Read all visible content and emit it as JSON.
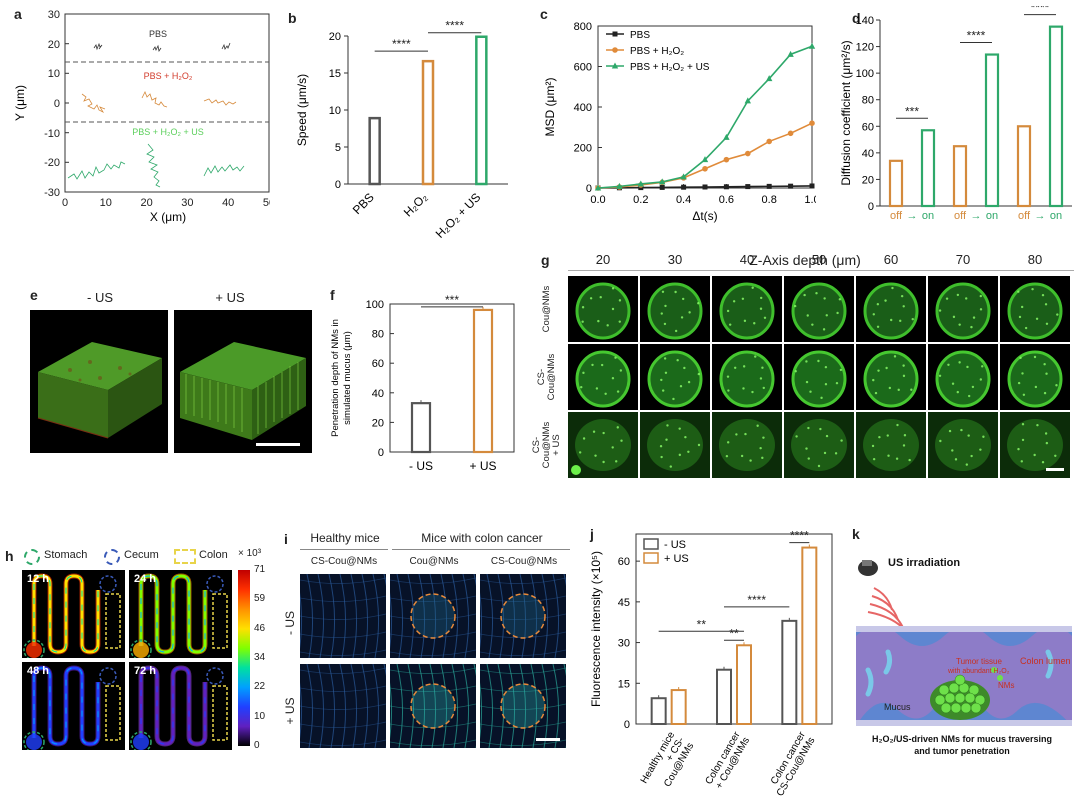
{
  "panels": {
    "a": {
      "label": "a",
      "xlabel": "X (μm)",
      "ylabel": "Y (μm)",
      "xticks": [
        "0",
        "10",
        "20",
        "30",
        "40",
        "50"
      ],
      "yticks": [
        "30",
        "20",
        "10",
        "0",
        "-10",
        "-20",
        "-30"
      ],
      "groups": [
        {
          "name": "PBS",
          "color": "#333333"
        },
        {
          "name": "PBS + H₂O₂",
          "color": "#d23c2c"
        },
        {
          "name": "PBS + H₂O₂ + US",
          "color": "#5ccf5c"
        }
      ],
      "trace_colors": {
        "pbs": "#333333",
        "h2o2": "#d68a3c",
        "us": "#2ea86a"
      }
    },
    "b": {
      "label": "b",
      "chart_data": {
        "type": "bar",
        "categories": [
          "PBS",
          "H₂O₂",
          "H₂O₂ + US"
        ],
        "values": [
          8.9,
          16.6,
          19.9
        ],
        "colors": [
          "#555555",
          "#d48a3c",
          "#2ea86a"
        ],
        "ylabel": "Speed (μm/s)",
        "ylim": [
          0,
          20
        ],
        "yticks": [
          0,
          5,
          10,
          15,
          20
        ],
        "significance": [
          "****",
          "****"
        ]
      }
    },
    "c": {
      "label": "c",
      "chart_data": {
        "type": "line",
        "xlabel": "Δt(s)",
        "ylabel": "MSD (μm²)",
        "xlim": [
          0,
          1.0
        ],
        "ylim": [
          0,
          800
        ],
        "xticks": [
          0.0,
          0.2,
          0.4,
          0.6,
          0.8,
          1.0
        ],
        "yticks": [
          0,
          200,
          400,
          600,
          800
        ],
        "x": [
          0,
          0.1,
          0.2,
          0.3,
          0.4,
          0.5,
          0.6,
          0.7,
          0.8,
          0.9,
          1.0
        ],
        "series": [
          {
            "name": "PBS",
            "color": "#222222",
            "marker": "square",
            "values": [
              0,
              1,
              2,
              3,
              4,
              5,
              6,
              7,
              8,
              9,
              10
            ]
          },
          {
            "name": "PBS + H₂O₂",
            "color": "#e08b3a",
            "marker": "circle",
            "values": [
              0,
              5,
              15,
              28,
              50,
              95,
              140,
              170,
              230,
              270,
              320
            ]
          },
          {
            "name": "PBS + H₂O₂ + US",
            "color": "#2ea86a",
            "marker": "triangle",
            "values": [
              0,
              8,
              20,
              30,
              55,
              140,
              250,
              430,
              540,
              660,
              700
            ]
          }
        ]
      }
    },
    "d": {
      "label": "d",
      "chart_data": {
        "type": "bar",
        "ylabel": "Diffusion coefficient (μm²/s)",
        "ylim": [
          0,
          140
        ],
        "yticks": [
          0,
          20,
          40,
          60,
          80,
          100,
          120,
          140
        ],
        "categories": [
          "off",
          "on",
          "off",
          "on",
          "off",
          "on"
        ],
        "values": [
          34,
          57,
          45,
          114,
          60,
          135
        ],
        "colors": [
          "#d48a3c",
          "#2ea86a",
          "#d48a3c",
          "#2ea86a",
          "#d48a3c",
          "#2ea86a"
        ],
        "significance": [
          "***",
          "****",
          "****"
        ]
      }
    },
    "e": {
      "label": "e",
      "titles": [
        "- US",
        "+ US"
      ]
    },
    "f": {
      "label": "f",
      "chart_data": {
        "type": "bar",
        "categories": [
          "- US",
          "+ US"
        ],
        "values": [
          33,
          96
        ],
        "colors": [
          "#555555",
          "#d48a3c"
        ],
        "ylabel": "Penetration depth of NMs in simulated mucus (μm)",
        "ylabel_lines": [
          "Penetration depth of NMs in",
          "simulated mucus (μm)"
        ],
        "ylim": [
          0,
          100
        ],
        "yticks": [
          0,
          20,
          40,
          60,
          80,
          100
        ],
        "significance": [
          "***"
        ]
      }
    },
    "g": {
      "label": "g",
      "title": "Z-Axis depth (μm)",
      "depths": [
        "20",
        "30",
        "40",
        "50",
        "60",
        "70",
        "80"
      ],
      "rows": [
        "Cou@NMs",
        "CS-Cou@NMs",
        "CS-Cou@NMs + US"
      ],
      "row_lines": [
        [
          "Cou@NMs"
        ],
        [
          "CS-",
          "Cou@NMs"
        ],
        [
          "CS-",
          "Cou@NMs",
          "+ US"
        ]
      ]
    },
    "h": {
      "label": "h",
      "legend": [
        "Stomach",
        "Cecum",
        "Colon"
      ],
      "legend_colors": [
        "#2ea86a",
        "#3a5ab8",
        "#e8d44a"
      ],
      "times": [
        "12 h",
        "24 h",
        "48 h",
        "72 h"
      ],
      "colorbar_unit": "× 10³",
      "colorbar_ticks": [
        "71",
        "59",
        "46",
        "34",
        "22",
        "10",
        "0"
      ]
    },
    "i": {
      "label": "i",
      "group_headers": [
        "Healthy mice",
        "Mice with colon cancer"
      ],
      "col_headers": [
        "CS-Cou@NMs",
        "Cou@NMs",
        "CS-Cou@NMs"
      ],
      "row_labels": [
        "- US",
        "+ US"
      ]
    },
    "j": {
      "label": "j",
      "chart_data": {
        "type": "bar",
        "ylabel": "Fluorescence intensity (×10⁵)",
        "ylim": [
          0,
          70
        ],
        "yticks": [
          0,
          15,
          30,
          45,
          60
        ],
        "categories": [
          "Healthy mice + CS-Cou@NMs",
          "Colon cancer + Cou@NMs",
          "Colon cancer + CS-Cou@NMs"
        ],
        "category_lines": [
          [
            "Healthy mice",
            "+ CS-",
            "Cou@NMs"
          ],
          [
            "Colon cancer",
            "+ Cou@NMs"
          ],
          [
            "Colon cancer",
            "+ CS-Cou@NMs"
          ]
        ],
        "series": [
          {
            "name": "- US",
            "color": "#555555",
            "values": [
              9.5,
              20,
              38
            ]
          },
          {
            "name": "+ US",
            "color": "#d48a3c",
            "values": [
              12.5,
              29,
              65
            ]
          }
        ],
        "significance": [
          "**",
          "**",
          "****",
          "****"
        ]
      }
    },
    "k": {
      "label": "k",
      "us_label": "US irradiation",
      "colon_lumen": "Colon lumen",
      "tumor_tissue": [
        "Tumor tissue",
        "with abundant H₂O₂"
      ],
      "nms": "NMs",
      "mucus": "Mucus",
      "caption": [
        "H₂O₂/US-driven  NMs for mucus traversing",
        "and tumor penetration"
      ]
    }
  }
}
